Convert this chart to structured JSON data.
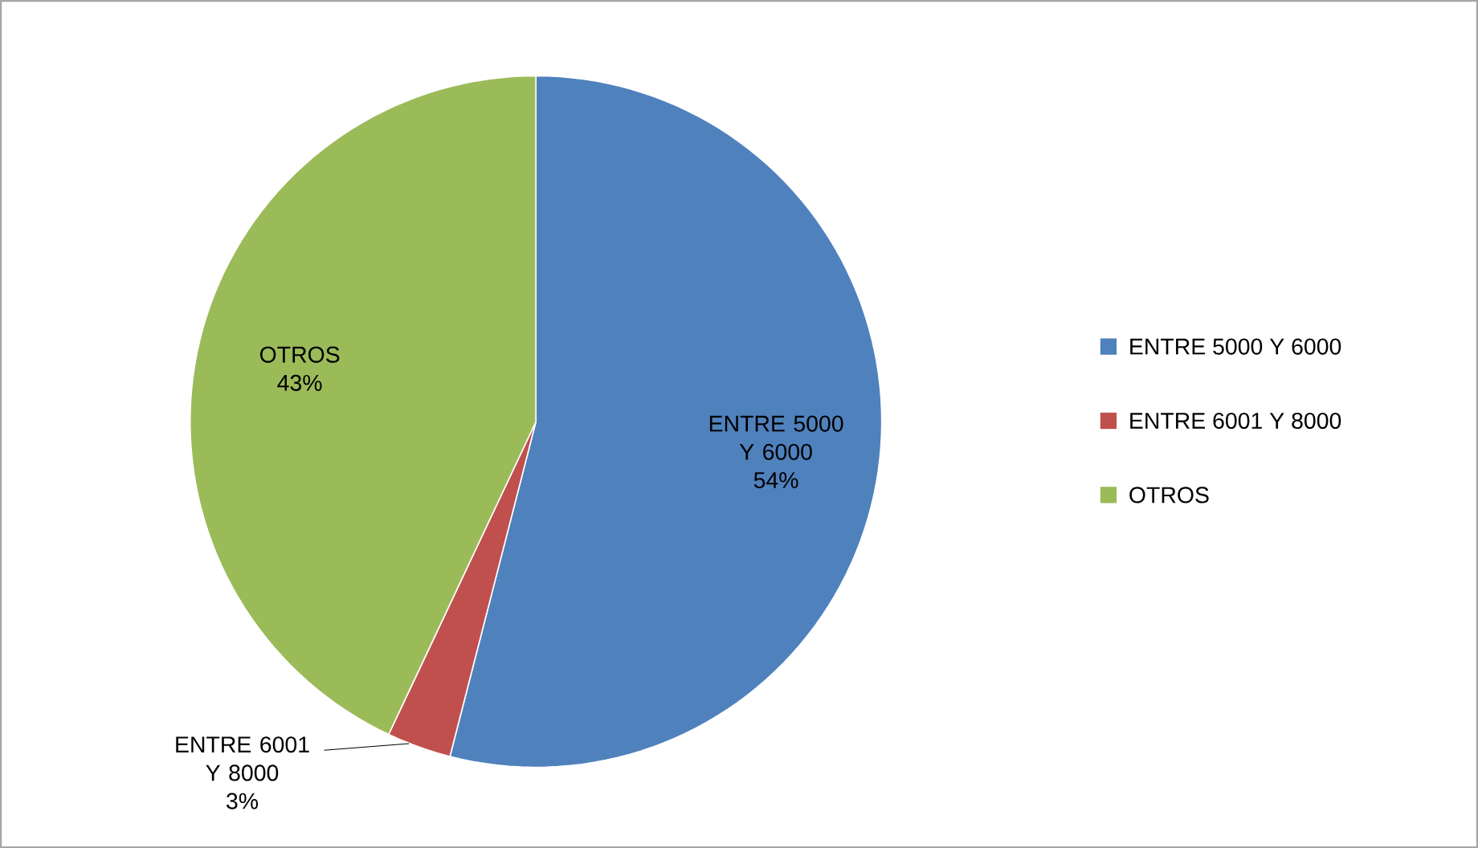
{
  "chart_data": {
    "type": "pie",
    "categories": [
      "ENTRE 5000 Y 6000",
      "ENTRE 6001 Y 8000",
      "OTROS"
    ],
    "values": [
      54,
      3,
      43
    ],
    "colors": [
      "#4f81bd",
      "#c0504d",
      "#9bbb59"
    ],
    "value_labels": [
      "54%",
      "3%",
      "43%"
    ],
    "legend": "right"
  }
}
